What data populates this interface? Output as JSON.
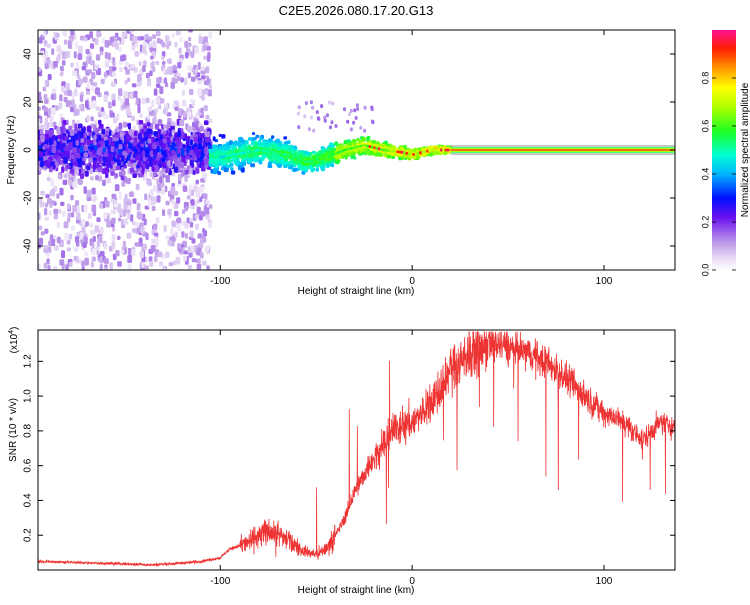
{
  "title": "C2E5.2026.080.17.20.G13",
  "chart_data": [
    {
      "type": "heatmap",
      "xlabel": "Height of straight line (km)",
      "ylabel": "Frequency (Hz)",
      "xlim": [
        -195,
        137
      ],
      "ylim": [
        -50,
        50
      ],
      "xticks": [
        -100,
        0,
        100
      ],
      "yticks": [
        -40,
        -20,
        0,
        20,
        40
      ],
      "colorbar": {
        "label": "Normalized spectral amplitude",
        "range": [
          0,
          1
        ],
        "ticks": [
          "0.0",
          "0.2",
          "0.4",
          "0.6",
          "0.8"
        ],
        "tick_values": [
          0.0,
          0.2,
          0.4,
          0.6,
          0.8
        ]
      },
      "description_points": {
        "line_frequency_hz": 0,
        "stable_from_km": 20,
        "noise_until_km": -105,
        "ridge": [
          {
            "x": -100,
            "y": -3
          },
          {
            "x": -80,
            "y": 0
          },
          {
            "x": -65,
            "y": -2
          },
          {
            "x": -55,
            "y": -5
          },
          {
            "x": -45,
            "y": -3
          },
          {
            "x": -35,
            "y": 0
          },
          {
            "x": -25,
            "y": 2
          },
          {
            "x": -15,
            "y": 0
          },
          {
            "x": -5,
            "y": -1
          },
          {
            "x": 0,
            "y": -2
          },
          {
            "x": 10,
            "y": 0
          },
          {
            "x": 20,
            "y": 0
          }
        ]
      }
    },
    {
      "type": "line",
      "xlabel": "Height of straight line (km)",
      "ylabel": "SNR (10 * v/v)",
      "multiplier": "(x10",
      "multiplier_exp": "4",
      "multiplier_close": ")",
      "xlim": [
        -195,
        137
      ],
      "ylim": [
        0,
        1.38
      ],
      "xticks": [
        -100,
        0,
        100
      ],
      "yticks": [
        "0.2",
        "0.4",
        "0.6",
        "0.8",
        "1.0",
        "1.2"
      ],
      "ytick_values": [
        0.2,
        0.4,
        0.6,
        0.8,
        1.0,
        1.2
      ],
      "series": [
        {
          "name": "SNR",
          "color": "#ee3333",
          "x": [
            -195,
            -180,
            -165,
            -150,
            -135,
            -120,
            -110,
            -100,
            -95,
            -90,
            -85,
            -80,
            -75,
            -70,
            -65,
            -60,
            -55,
            -50,
            -45,
            -40,
            -35,
            -30,
            -25,
            -20,
            -15,
            -10,
            -5,
            0,
            5,
            10,
            15,
            20,
            25,
            30,
            35,
            40,
            45,
            50,
            55,
            60,
            65,
            70,
            75,
            80,
            85,
            90,
            95,
            100,
            105,
            110,
            115,
            120,
            125,
            130,
            137
          ],
          "y": [
            0.05,
            0.045,
            0.04,
            0.035,
            0.03,
            0.04,
            0.05,
            0.07,
            0.12,
            0.14,
            0.16,
            0.2,
            0.22,
            0.2,
            0.18,
            0.13,
            0.1,
            0.09,
            0.12,
            0.2,
            0.3,
            0.45,
            0.55,
            0.65,
            0.72,
            0.8,
            0.85,
            0.85,
            0.9,
            0.95,
            1.05,
            1.15,
            1.2,
            1.25,
            1.28,
            1.3,
            1.3,
            1.28,
            1.27,
            1.25,
            1.22,
            1.2,
            1.15,
            1.1,
            1.05,
            1.0,
            0.95,
            0.9,
            0.88,
            0.85,
            0.8,
            0.75,
            0.8,
            0.85,
            0.82
          ]
        }
      ]
    }
  ]
}
